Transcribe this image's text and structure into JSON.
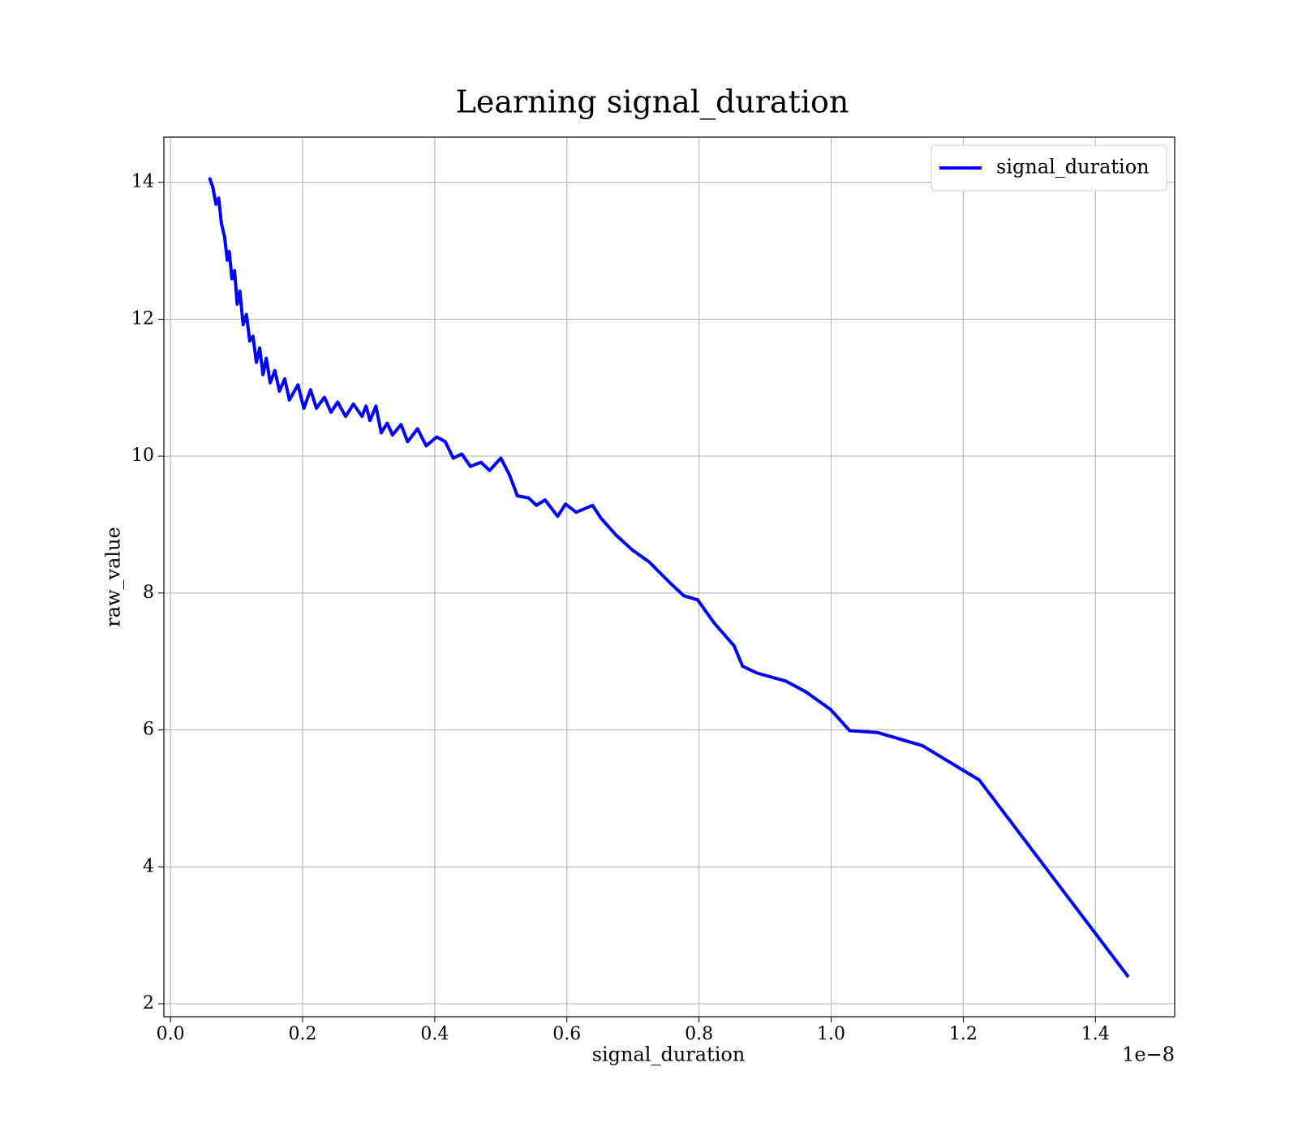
{
  "chart_data": {
    "type": "line",
    "title": "Learning signal_duration",
    "x_label": "signal_duration",
    "y_label": "raw_value",
    "x_offset_label": "1e−8",
    "xlim": [
      -0.01,
      1.52
    ],
    "ylim": [
      1.81,
      14.66
    ],
    "xticks": [
      {
        "value": 0,
        "label": "0.0"
      },
      0.2,
      0.4,
      0.6,
      0.8,
      {
        "value": 1,
        "label": "1.0"
      },
      1.2,
      1.4
    ],
    "yticks": [
      2,
      4,
      6,
      8,
      10,
      12,
      14
    ],
    "grid": true,
    "legend": "upper right",
    "x": [
      0.059,
      0.064,
      0.069,
      0.073,
      0.077,
      0.082,
      0.086,
      0.089,
      0.093,
      0.097,
      0.101,
      0.105,
      0.11,
      0.115,
      0.12,
      0.125,
      0.13,
      0.135,
      0.14,
      0.145,
      0.151,
      0.158,
      0.165,
      0.173,
      0.18,
      0.193,
      0.202,
      0.212,
      0.221,
      0.233,
      0.243,
      0.253,
      0.265,
      0.277,
      0.29,
      0.296,
      0.302,
      0.311,
      0.319,
      0.328,
      0.336,
      0.349,
      0.359,
      0.374,
      0.387,
      0.403,
      0.416,
      0.428,
      0.441,
      0.454,
      0.47,
      0.483,
      0.5,
      0.513,
      0.525,
      0.542,
      0.554,
      0.567,
      0.586,
      0.598,
      0.614,
      0.639,
      0.651,
      0.674,
      0.699,
      0.725,
      0.756,
      0.777,
      0.798,
      0.823,
      0.853,
      0.866,
      0.888,
      0.932,
      0.961,
      0.999,
      1.028,
      1.071,
      1.138,
      1.224,
      1.45
    ],
    "series": [
      {
        "name": "signal_duration",
        "color": "#0000ff",
        "values": [
          14.07,
          13.93,
          13.68,
          13.77,
          13.4,
          13.2,
          12.86,
          12.99,
          12.59,
          12.71,
          12.22,
          12.41,
          11.92,
          12.07,
          11.68,
          11.75,
          11.37,
          11.58,
          11.19,
          11.43,
          11.07,
          11.25,
          10.95,
          11.13,
          10.82,
          11.04,
          10.7,
          10.97,
          10.7,
          10.86,
          10.64,
          10.79,
          10.58,
          10.76,
          10.58,
          10.73,
          10.52,
          10.73,
          10.34,
          10.48,
          10.31,
          10.46,
          10.21,
          10.4,
          10.15,
          10.28,
          10.21,
          9.97,
          10.03,
          9.85,
          9.91,
          9.79,
          9.97,
          9.73,
          9.42,
          9.39,
          9.28,
          9.36,
          9.12,
          9.3,
          9.18,
          9.28,
          9.1,
          8.85,
          8.63,
          8.45,
          8.15,
          7.96,
          7.9,
          7.56,
          7.23,
          6.93,
          6.83,
          6.71,
          6.56,
          6.3,
          5.99,
          5.96,
          5.77,
          5.27,
          2.39
        ]
      }
    ]
  }
}
